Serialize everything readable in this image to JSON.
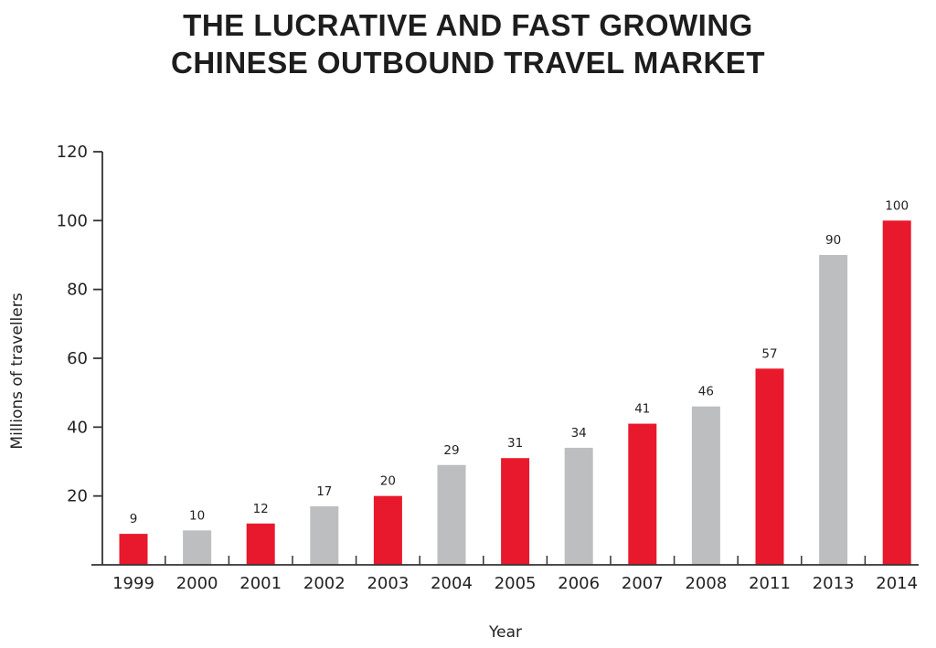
{
  "chart_data": {
    "type": "bar",
    "title_lines": [
      "THE LUCRATIVE AND FAST GROWING",
      "CHINESE OUTBOUND TRAVEL MARKET"
    ],
    "xlabel": "Year",
    "ylabel": "Millions of travellers",
    "ylim": [
      0,
      120
    ],
    "yticks": [
      20,
      40,
      60,
      80,
      100,
      120
    ],
    "grid": false,
    "legend": "none",
    "categories": [
      "1999",
      "2000",
      "2001",
      "2002",
      "2003",
      "2004",
      "2005",
      "2006",
      "2007",
      "2008",
      "2011",
      "2013",
      "2014"
    ],
    "values": [
      9,
      10,
      12,
      17,
      20,
      29,
      31,
      34,
      41,
      46,
      57,
      90,
      100
    ],
    "value_labels": [
      "9",
      "10",
      "12",
      "17",
      "20",
      "29",
      "31",
      "34",
      "41",
      "46",
      "57",
      "90",
      "100"
    ],
    "bar_colors": [
      "#e8192c",
      "#bcbec0",
      "#e8192c",
      "#bcbec0",
      "#e8192c",
      "#bcbec0",
      "#e8192c",
      "#bcbec0",
      "#e8192c",
      "#bcbec0",
      "#e8192c",
      "#bcbec0",
      "#e8192c"
    ]
  },
  "colors": {
    "accent_red": "#e8192c",
    "neutral_gray": "#bcbec0",
    "axis": "#333333"
  }
}
